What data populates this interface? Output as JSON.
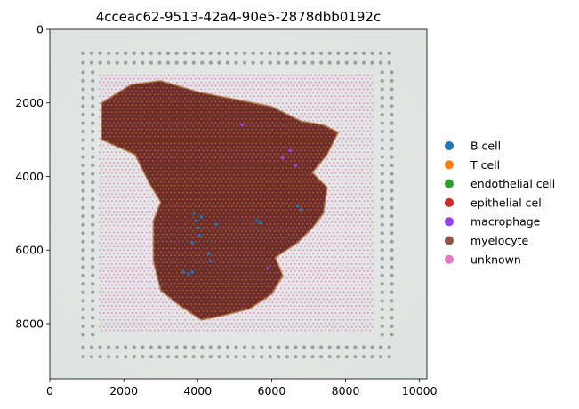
{
  "chart_data": {
    "type": "scatter",
    "title": "4cceac62-9513-42a4-90e5-2878dbb0192c",
    "xlabel": "",
    "ylabel": "",
    "xlim": [
      0,
      10200
    ],
    "ylim": [
      9500,
      0
    ],
    "xticks": [
      0,
      2000,
      4000,
      6000,
      8000,
      10000
    ],
    "yticks": [
      0,
      2000,
      4000,
      6000,
      8000
    ],
    "grid": false,
    "legend_position": "right",
    "legend": [
      {
        "name": "B cell",
        "color": "#1f77b4"
      },
      {
        "name": "T cell",
        "color": "#ff7f0e"
      },
      {
        "name": "endothelial cell",
        "color": "#2ca02c"
      },
      {
        "name": "epithelial cell",
        "color": "#d62728"
      },
      {
        "name": "macrophage",
        "color": "#9b3ef0"
      },
      {
        "name": "myelocyte",
        "color": "#8c564b"
      },
      {
        "name": "unknown",
        "color": "#e377c2"
      }
    ],
    "spot_grid": {
      "x_range": [
        1350,
        8750
      ],
      "y_range": [
        1250,
        8250
      ]
    },
    "tissue_outline": [
      [
        2200,
        1500
      ],
      [
        3000,
        1400
      ],
      [
        4000,
        1700
      ],
      [
        5000,
        1900
      ],
      [
        6000,
        2100
      ],
      [
        6800,
        2500
      ],
      [
        7400,
        2600
      ],
      [
        7800,
        2800
      ],
      [
        7500,
        3400
      ],
      [
        7100,
        3900
      ],
      [
        7500,
        4300
      ],
      [
        7400,
        5000
      ],
      [
        7100,
        5400
      ],
      [
        6700,
        5800
      ],
      [
        6100,
        6200
      ],
      [
        6300,
        6700
      ],
      [
        6000,
        7200
      ],
      [
        5400,
        7600
      ],
      [
        4600,
        7800
      ],
      [
        4100,
        7900
      ],
      [
        3500,
        7500
      ],
      [
        3000,
        7100
      ],
      [
        2800,
        6300
      ],
      [
        2800,
        5200
      ],
      [
        3000,
        4700
      ],
      [
        2700,
        4200
      ],
      [
        2300,
        3400
      ],
      [
        1400,
        3000
      ],
      [
        1400,
        2000
      ]
    ],
    "b_cell_spots": [
      [
        3900,
        5000
      ],
      [
        3950,
        5200
      ],
      [
        4000,
        5400
      ],
      [
        4050,
        5600
      ],
      [
        3850,
        5800
      ],
      [
        4100,
        5100
      ],
      [
        5600,
        5200
      ],
      [
        5700,
        5250
      ],
      [
        4300,
        6100
      ],
      [
        4350,
        6300
      ],
      [
        3600,
        6600
      ],
      [
        3750,
        6650
      ],
      [
        3850,
        6600
      ],
      [
        6700,
        4800
      ],
      [
        6800,
        4900
      ],
      [
        4500,
        5300
      ]
    ],
    "macrophage_spots": [
      [
        6300,
        3500
      ],
      [
        6500,
        3300
      ],
      [
        6650,
        3700
      ],
      [
        5200,
        2600
      ],
      [
        5900,
        6500
      ]
    ]
  }
}
